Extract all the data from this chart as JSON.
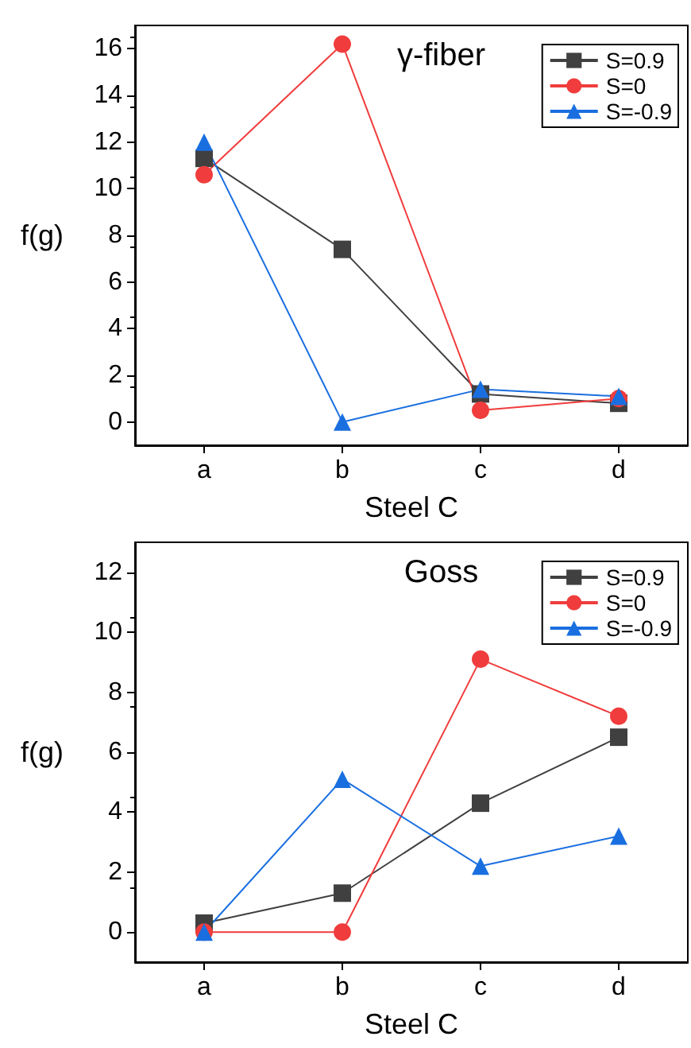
{
  "chart_data": [
    {
      "type": "line",
      "title": "γ-fiber",
      "xlabel": "Steel C",
      "ylabel": "f(g)",
      "categories": [
        "a",
        "b",
        "c",
        "d"
      ],
      "ylim": [
        -1,
        17
      ],
      "yticks": [
        0,
        2,
        4,
        6,
        8,
        10,
        12,
        14,
        16
      ],
      "legend": "top right",
      "grid": false,
      "series": [
        {
          "name": "S=0.9",
          "color": "#404040",
          "marker": "square",
          "values": [
            11.3,
            7.4,
            1.2,
            0.8
          ]
        },
        {
          "name": "S=0",
          "color": "#f03c3c",
          "marker": "circle",
          "values": [
            10.6,
            16.2,
            0.5,
            1.0
          ]
        },
        {
          "name": "S=-0.9",
          "color": "#1a6fe0",
          "marker": "triangle",
          "values": [
            12.0,
            0,
            1.4,
            1.1
          ]
        }
      ]
    },
    {
      "type": "line",
      "title": "Goss",
      "xlabel": "Steel C",
      "ylabel": "f(g)",
      "categories": [
        "a",
        "b",
        "c",
        "d"
      ],
      "ylim": [
        -1,
        13
      ],
      "yticks": [
        0,
        2,
        4,
        6,
        8,
        10,
        12
      ],
      "legend": "top right",
      "grid": false,
      "series": [
        {
          "name": "S=0.9",
          "color": "#404040",
          "marker": "square",
          "values": [
            0.3,
            1.3,
            4.3,
            6.5
          ]
        },
        {
          "name": "S=0",
          "color": "#f03c3c",
          "marker": "circle",
          "values": [
            0,
            0,
            9.1,
            7.2
          ]
        },
        {
          "name": "S=-0.9",
          "color": "#1a6fe0",
          "marker": "triangle",
          "values": [
            0,
            5.1,
            2.2,
            3.2
          ]
        }
      ]
    }
  ]
}
